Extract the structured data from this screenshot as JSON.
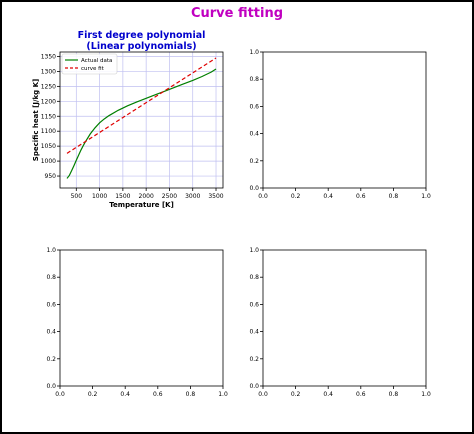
{
  "figure": {
    "suptitle": "Curve fitting",
    "suptitle_color": "#c000c0",
    "title_color": "#0000cc",
    "actual_color": "#007f00",
    "fit_color": "#e00000",
    "grid_color": "#bfbff0"
  },
  "chart_data": [
    {
      "type": "line",
      "title_line1": "First degree polynomial",
      "title_line2": "(Linear polynomials)",
      "xlabel": "Temperature [K]",
      "ylabel": "Specific heat [J/kg K]",
      "xlim": [
        150,
        3650
      ],
      "ylim": [
        910,
        1365
      ],
      "xticks": [
        500,
        1000,
        1500,
        2000,
        2500,
        3000,
        3500
      ],
      "yticks": [
        950,
        1000,
        1050,
        1100,
        1150,
        1200,
        1250,
        1300,
        1350
      ],
      "grid": true,
      "legend": {
        "location": "upper-left",
        "entries": [
          "Actual data",
          "curve fit"
        ]
      },
      "series": [
        {
          "name": "Actual data",
          "style": "solid",
          "x": [
            300,
            350,
            400,
            450,
            500,
            550,
            600,
            650,
            700,
            800,
            900,
            1000,
            1100,
            1200,
            1400,
            1600,
            1800,
            2000,
            2200,
            2400,
            2600,
            2800,
            3000,
            3200,
            3400,
            3500
          ],
          "y": [
            942,
            952,
            968,
            985,
            1003,
            1020,
            1037,
            1052,
            1066,
            1091,
            1111,
            1128,
            1141,
            1152,
            1170,
            1185,
            1198,
            1210,
            1222,
            1234,
            1246,
            1258,
            1270,
            1283,
            1298,
            1308
          ]
        },
        {
          "name": "curve fit",
          "style": "dashed",
          "x": [
            300,
            3500
          ],
          "y": [
            1026,
            1345
          ]
        }
      ]
    },
    {
      "type": "line",
      "xlim": [
        0,
        1
      ],
      "ylim": [
        0,
        1
      ],
      "xticks": [
        0.0,
        0.2,
        0.4,
        0.6,
        0.8,
        1.0
      ],
      "yticks": [
        0.0,
        0.2,
        0.4,
        0.6,
        0.8,
        1.0
      ],
      "series": []
    },
    {
      "type": "line",
      "xlim": [
        0,
        1
      ],
      "ylim": [
        0,
        1
      ],
      "xticks": [
        0.0,
        0.2,
        0.4,
        0.6,
        0.8,
        1.0
      ],
      "yticks": [
        0.0,
        0.2,
        0.4,
        0.6,
        0.8,
        1.0
      ],
      "series": []
    },
    {
      "type": "line",
      "xlim": [
        0,
        1
      ],
      "ylim": [
        0,
        1
      ],
      "xticks": [
        0.0,
        0.2,
        0.4,
        0.6,
        0.8,
        1.0
      ],
      "yticks": [
        0.0,
        0.2,
        0.4,
        0.6,
        0.8,
        1.0
      ],
      "series": []
    }
  ]
}
